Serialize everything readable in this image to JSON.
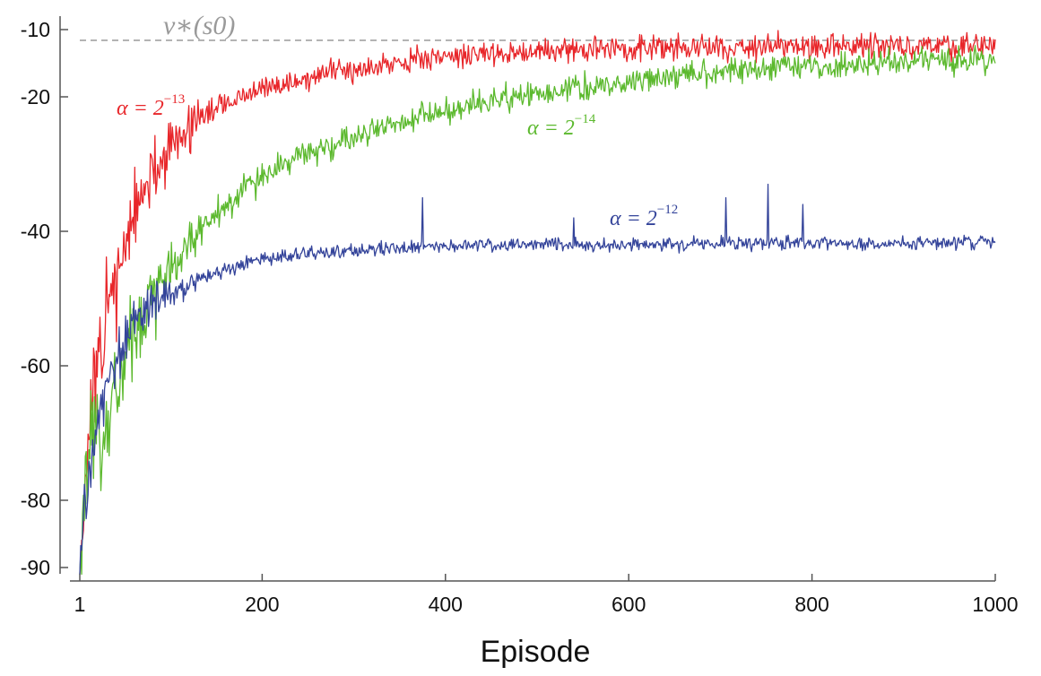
{
  "chart_data": {
    "type": "line",
    "xlabel": "Episode",
    "ylabel": "",
    "xlim": [
      1,
      1000
    ],
    "ylim": [
      -92,
      -8
    ],
    "x_ticks": [
      1,
      200,
      400,
      600,
      800,
      1000
    ],
    "y_ticks": [
      -10,
      -20,
      -40,
      -60,
      -80,
      -90
    ],
    "y_tick_labels": [
      "-10",
      "-20",
      "-40",
      "-60",
      "-80",
      "-90"
    ],
    "reference_line": {
      "label": "v∗(s0)",
      "value": -11.6,
      "style": "dashed",
      "color": "#9a9a9a"
    },
    "series": [
      {
        "name": "α = 2−13",
        "base": "α = 2",
        "exponent": "−13",
        "color": "#e8262a",
        "x": [
          1,
          10,
          20,
          30,
          40,
          50,
          60,
          70,
          80,
          90,
          100,
          120,
          140,
          160,
          180,
          200,
          240,
          280,
          320,
          360,
          400,
          450,
          500,
          550,
          600,
          700,
          800,
          900,
          1000
        ],
        "values": [
          -90,
          -70,
          -62,
          -53,
          -47,
          -42,
          -38,
          -35,
          -32,
          -29.5,
          -27.5,
          -24.5,
          -22.5,
          -21,
          -20,
          -19,
          -17.5,
          -16.3,
          -15.3,
          -14.5,
          -14,
          -13.5,
          -13.2,
          -13,
          -12.8,
          -12.6,
          -12.5,
          -12.4,
          -12.4
        ],
        "noise": 1.6
      },
      {
        "name": "α = 2−14",
        "base": "α = 2",
        "exponent": "−14",
        "color": "#5cb92e",
        "x": [
          1,
          10,
          20,
          30,
          40,
          50,
          60,
          70,
          80,
          90,
          100,
          120,
          140,
          160,
          180,
          200,
          240,
          280,
          320,
          360,
          400,
          450,
          500,
          550,
          600,
          650,
          700,
          800,
          900,
          1000
        ],
        "values": [
          -90,
          -75,
          -70,
          -67,
          -63,
          -60,
          -56,
          -53,
          -50,
          -47.5,
          -45.5,
          -41.5,
          -38.5,
          -36,
          -34,
          -32,
          -29,
          -27,
          -25,
          -23.5,
          -22,
          -20.5,
          -19.5,
          -18.5,
          -17.8,
          -17,
          -16.3,
          -15.5,
          -14.8,
          -14.5
        ],
        "noise": 1.8
      },
      {
        "name": "α = 2−12",
        "base": "α = 2",
        "exponent": "−12",
        "color": "#34449a",
        "x": [
          1,
          5,
          10,
          20,
          30,
          40,
          50,
          60,
          70,
          80,
          100,
          120,
          140,
          160,
          180,
          200,
          250,
          300,
          350,
          400,
          500,
          600,
          700,
          800,
          900,
          1000
        ],
        "values": [
          -90,
          -83,
          -78,
          -70,
          -63,
          -59,
          -56,
          -54,
          -52.5,
          -51,
          -49,
          -47.5,
          -46.3,
          -45.5,
          -44.8,
          -44.2,
          -43.3,
          -42.8,
          -42.4,
          -42.2,
          -42,
          -41.9,
          -41.8,
          -41.7,
          -41.7,
          -41.7
        ],
        "noise": 0.9,
        "spikes": [
          [
            375,
            -35
          ],
          [
            706,
            -35
          ],
          [
            752,
            -33
          ],
          [
            790,
            -36
          ],
          [
            540,
            -38
          ]
        ]
      }
    ]
  }
}
